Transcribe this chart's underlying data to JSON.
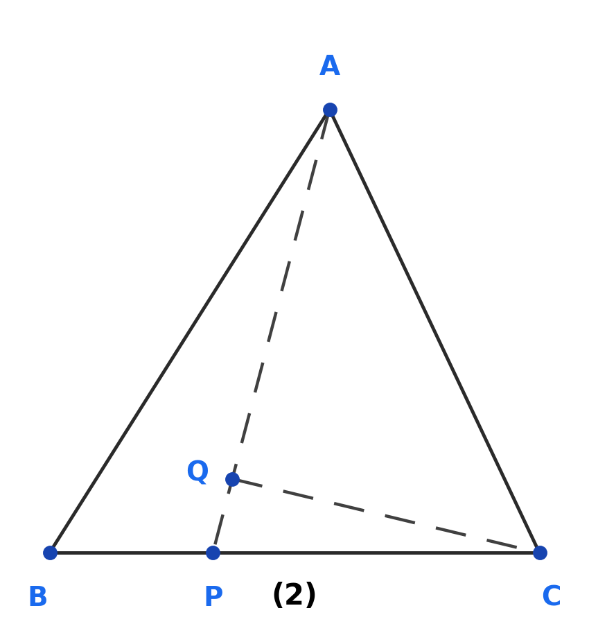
{
  "B": [
    0.08,
    0.12
  ],
  "C": [
    0.92,
    0.12
  ],
  "A": [
    0.56,
    0.88
  ],
  "BP_ratio": 0.3333,
  "PQ_ratio": 0.1667,
  "point_color": "#1744b0",
  "line_color": "#2a2a2a",
  "dashed_color": "#404040",
  "label_color": "#1a6aee",
  "point_size": 14,
  "line_width": 3.5,
  "dashed_lw": 3.2,
  "label_fontsize": 28,
  "figure_label": "(2)",
  "figure_label_fontsize": 30,
  "bg_color": "#ffffff"
}
